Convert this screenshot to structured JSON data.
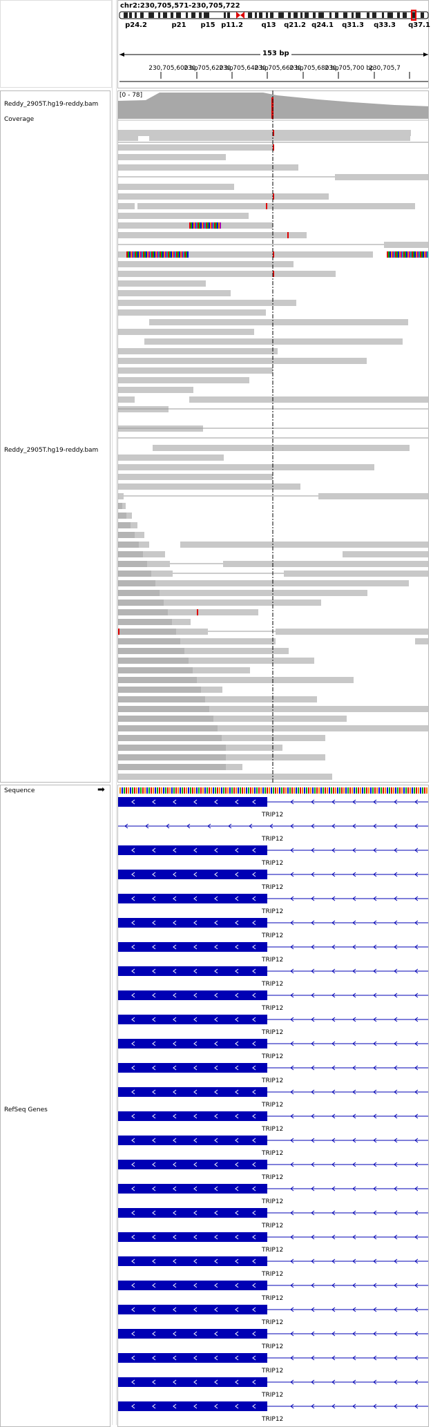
{
  "header": {
    "locus": "chr2:230,705,571-230,705,722",
    "span_label": "153 bp",
    "cytobands": [
      "p24.2",
      "p21",
      "p15",
      "p11.2",
      "q13",
      "q21.2",
      "q24.1",
      "q31.3",
      "q33.3",
      "q37.1"
    ],
    "ruler_ticks": [
      "230,705,600 bp",
      "230,705,620 bp",
      "230,705,640 bp",
      "230,705,660 bp",
      "230,705,680 bp",
      "230,705,700 bp",
      "230,705,7"
    ]
  },
  "tracks": {
    "coverage_name": "Reddy_2905T.hg19-reddy.bam Coverage",
    "coverage_range": "[0 - 78]",
    "alignment_name": "Reddy_2905T.hg19-reddy.bam",
    "sequence_name": "Sequence",
    "genes_name": "RefSeq Genes"
  },
  "genes": {
    "gene_label": "TRIP12",
    "rows": 26
  },
  "colors": {
    "gene_blue": "#0000b4",
    "read_gray": "#c8c8c8",
    "coverage_gray": "#a8a8a8",
    "mismatch_red": "#e00000",
    "panel_border": "#b8b8b8"
  }
}
